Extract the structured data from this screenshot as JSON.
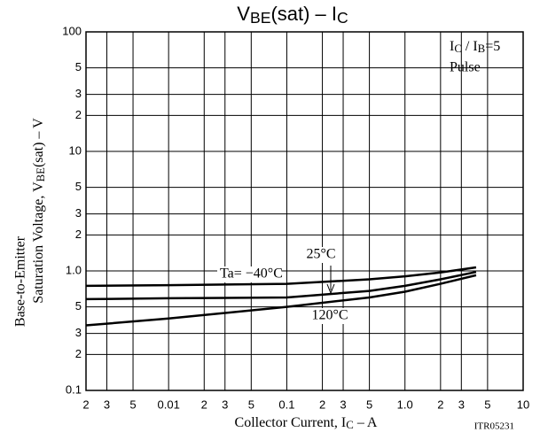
{
  "chart_data": {
    "type": "line",
    "title": [
      "V",
      "BE",
      "(sat)  –  I",
      "C"
    ],
    "xlabel": [
      "Collector Current, I",
      "C",
      "  –  A"
    ],
    "ylabel": [
      "Base-to-Emitter",
      "Saturation Voltage, V",
      "BE",
      "(sat)  –  V"
    ],
    "annotation": [
      "I",
      "C",
      " / I",
      "B",
      "=5"
    ],
    "annotation2": "Pulse",
    "code": "ITR05231",
    "log_x": true,
    "log_y": true,
    "grid": true,
    "color": "#000000",
    "x": [
      0.002,
      0.01,
      0.1,
      0.5,
      1,
      2,
      4
    ],
    "series": [
      {
        "name": "Ta= −40°C",
        "color": "#000000",
        "values": [
          0.75,
          0.76,
          0.78,
          0.85,
          0.9,
          0.97,
          1.07
        ]
      },
      {
        "name": "25°C",
        "color": "#000000",
        "values": [
          0.58,
          0.59,
          0.6,
          0.68,
          0.75,
          0.85,
          0.98
        ]
      },
      {
        "name": "120°C",
        "color": "#000000",
        "values": [
          0.35,
          0.4,
          0.5,
          0.6,
          0.67,
          0.78,
          0.92
        ]
      }
    ],
    "xlim": [
      0.002,
      10
    ],
    "ylim": [
      0.1,
      100
    ],
    "xticks": [
      {
        "value": 0.002,
        "label": "2"
      },
      {
        "value": 0.003,
        "label": "3"
      },
      {
        "value": 0.005,
        "label": "5"
      },
      0.01,
      {
        "value": 0.02,
        "label": "2"
      },
      {
        "value": 0.03,
        "label": "3"
      },
      {
        "value": 0.05,
        "label": "5"
      },
      0.1,
      {
        "value": 0.2,
        "label": "2"
      },
      {
        "value": 0.3,
        "label": "3"
      },
      {
        "value": 0.5,
        "label": "5"
      },
      {
        "value": 1,
        "label": "1.0"
      },
      2,
      3,
      5,
      10
    ],
    "yticks": [
      0.1,
      {
        "value": 0.2,
        "label": "2"
      },
      {
        "value": 0.3,
        "label": "3"
      },
      {
        "value": 0.5,
        "label": "5"
      },
      {
        "value": 1,
        "label": "1.0"
      },
      2,
      3,
      5,
      10,
      {
        "value": 20,
        "label": "2"
      },
      {
        "value": 30,
        "label": "3"
      },
      {
        "value": 50,
        "label": "5"
      },
      100
    ]
  }
}
